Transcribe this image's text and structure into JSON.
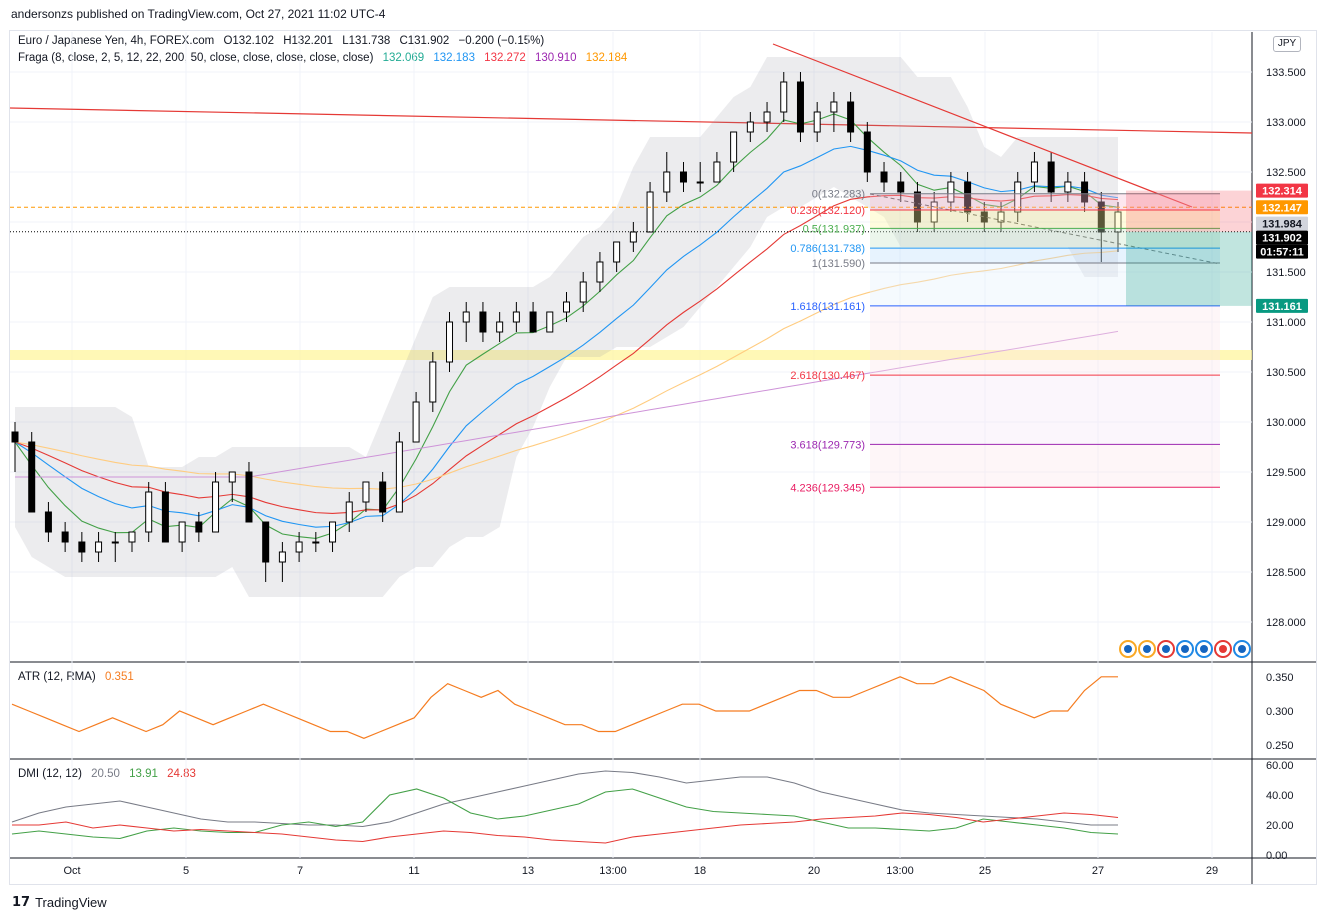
{
  "publisher": "andersonzs published on TradingView.com, Oct 27, 2021 11:02 UTC-4",
  "symbol_line": {
    "name": "Euro / Japanese Yen, 4h, FOREX.com",
    "open": "O132.102",
    "high": "H132.201",
    "low": "L131.738",
    "close": "C131.902",
    "change": "−0.200 (−0.15%)"
  },
  "indicator_line": {
    "name": "Fraga (8, close, 2, 5, 12, 22, 200, 50, close, close, close, close, close)",
    "values": [
      {
        "text": "132.069",
        "color": "#22ab94"
      },
      {
        "text": "132.183",
        "color": "#2196f3"
      },
      {
        "text": "132.272",
        "color": "#f23645"
      },
      {
        "text": "130.910",
        "color": "#9c27b0"
      },
      {
        "text": "132.184",
        "color": "#ff9800"
      }
    ]
  },
  "currency_button": "JPY",
  "atr": {
    "label": "ATR (12, RMA)",
    "value": "0.351",
    "color": "#f57c20"
  },
  "dmi": {
    "label": "DMI (12, 12)",
    "adx": "20.50",
    "di_plus": "13.91",
    "di_minus": "24.83",
    "colors": {
      "adx": "#787b86",
      "di_plus": "#43a047",
      "di_minus": "#e53935"
    }
  },
  "price_axis": [
    "133.500",
    "133.000",
    "132.500",
    "132.000",
    "131.500",
    "131.000",
    "130.500",
    "130.000",
    "129.500",
    "129.000",
    "128.500",
    "128.000"
  ],
  "price_badges": [
    {
      "text": "132.314",
      "bg": "#f23645",
      "color": "#ffffff"
    },
    {
      "text": "132.147",
      "bg": "#ff9800",
      "color": "#ffffff"
    },
    {
      "text": "131.984",
      "bg": "#d1d4dc",
      "color": "#131722"
    },
    {
      "text": "131.902",
      "bg": "#000000",
      "color": "#ffffff"
    },
    {
      "text": "01:57:11",
      "bg": "#000000",
      "color": "#ffffff"
    },
    {
      "text": "131.161",
      "bg": "#089981",
      "color": "#ffffff"
    }
  ],
  "atr_axis": [
    "0.350",
    "0.300",
    "0.250"
  ],
  "dmi_axis": [
    "60.00",
    "40.00",
    "20.00",
    "0.00"
  ],
  "time_axis": [
    "Oct",
    "5",
    "7",
    "11",
    "13",
    "13:00",
    "18",
    "20",
    "13:00",
    "25",
    "27",
    "29"
  ],
  "fib_levels": [
    {
      "text": "0(132.283)",
      "color": "#787b86"
    },
    {
      "text": "0.236(132.120)",
      "color": "#f23645"
    },
    {
      "text": "0.5(131.937)",
      "color": "#4caf50"
    },
    {
      "text": "0.786(131.738)",
      "color": "#2196f3"
    },
    {
      "text": "1(131.590)",
      "color": "#787b86"
    },
    {
      "text": "1.618(131.161)",
      "color": "#2962ff"
    },
    {
      "text": "2.618(130.467)",
      "color": "#f23645"
    },
    {
      "text": "3.618(129.773)",
      "color": "#9c27b0"
    },
    {
      "text": "4.236(129.345)",
      "color": "#e91e63"
    }
  ],
  "footer_brand": "TradingView",
  "chart_data": {
    "type": "candlestick",
    "title": "Euro / Japanese Yen, 4h, FOREX.com",
    "y_range": [
      127.6,
      133.9
    ],
    "candles": [
      [
        129.9,
        130.0,
        129.5,
        129.8
      ],
      [
        129.8,
        129.9,
        129.1,
        129.1
      ],
      [
        129.1,
        129.2,
        128.8,
        128.9
      ],
      [
        128.9,
        129.0,
        128.7,
        128.8
      ],
      [
        128.8,
        128.9,
        128.6,
        128.7
      ],
      [
        128.7,
        128.9,
        128.6,
        128.8
      ],
      [
        128.8,
        128.9,
        128.6,
        128.8
      ],
      [
        128.8,
        128.9,
        128.7,
        128.9
      ],
      [
        128.9,
        129.4,
        128.8,
        129.3
      ],
      [
        129.3,
        129.4,
        128.8,
        128.8
      ],
      [
        128.8,
        129.0,
        128.7,
        129.0
      ],
      [
        129.0,
        129.1,
        128.8,
        128.9
      ],
      [
        128.9,
        129.5,
        128.9,
        129.4
      ],
      [
        129.4,
        129.5,
        129.2,
        129.5
      ],
      [
        129.5,
        129.6,
        129.0,
        129.0
      ],
      [
        129.0,
        129.0,
        128.4,
        128.6
      ],
      [
        128.6,
        128.8,
        128.4,
        128.7
      ],
      [
        128.7,
        128.9,
        128.6,
        128.8
      ],
      [
        128.8,
        128.9,
        128.7,
        128.8
      ],
      [
        128.8,
        129.0,
        128.7,
        129.0
      ],
      [
        129.0,
        129.3,
        128.9,
        129.2
      ],
      [
        129.2,
        129.4,
        129.1,
        129.4
      ],
      [
        129.4,
        129.5,
        129.0,
        129.1
      ],
      [
        129.1,
        129.9,
        129.1,
        129.8
      ],
      [
        129.8,
        130.3,
        129.8,
        130.2
      ],
      [
        130.2,
        130.7,
        130.1,
        130.6
      ],
      [
        130.6,
        131.1,
        130.5,
        131.0
      ],
      [
        131.0,
        131.2,
        130.8,
        131.1
      ],
      [
        131.1,
        131.2,
        130.8,
        130.9
      ],
      [
        130.9,
        131.1,
        130.8,
        131.0
      ],
      [
        131.0,
        131.2,
        130.9,
        131.1
      ],
      [
        131.1,
        131.2,
        130.9,
        130.9
      ],
      [
        130.9,
        131.1,
        130.9,
        131.1
      ],
      [
        131.1,
        131.3,
        131.0,
        131.2
      ],
      [
        131.2,
        131.5,
        131.1,
        131.4
      ],
      [
        131.4,
        131.7,
        131.3,
        131.6
      ],
      [
        131.6,
        131.8,
        131.5,
        131.8
      ],
      [
        131.8,
        132.0,
        131.7,
        131.9
      ],
      [
        131.9,
        132.4,
        131.9,
        132.3
      ],
      [
        132.3,
        132.7,
        132.2,
        132.5
      ],
      [
        132.5,
        132.6,
        132.3,
        132.4
      ],
      [
        132.4,
        132.6,
        132.3,
        132.4
      ],
      [
        132.4,
        132.7,
        132.4,
        132.6
      ],
      [
        132.6,
        132.9,
        132.5,
        132.9
      ],
      [
        132.9,
        133.1,
        132.8,
        133.0
      ],
      [
        133.0,
        133.2,
        132.9,
        133.1
      ],
      [
        133.1,
        133.5,
        133.0,
        133.4
      ],
      [
        133.4,
        133.5,
        132.8,
        132.9
      ],
      [
        132.9,
        133.2,
        132.8,
        133.1
      ],
      [
        133.1,
        133.3,
        132.9,
        133.2
      ],
      [
        133.2,
        133.3,
        132.8,
        132.9
      ],
      [
        132.9,
        133.0,
        132.4,
        132.5
      ],
      [
        132.5,
        132.6,
        132.3,
        132.4
      ],
      [
        132.4,
        132.5,
        132.2,
        132.3
      ],
      [
        132.3,
        132.4,
        131.9,
        132.0
      ],
      [
        132.0,
        132.3,
        131.9,
        132.2
      ],
      [
        132.2,
        132.5,
        132.1,
        132.4
      ],
      [
        132.4,
        132.5,
        132.0,
        132.1
      ],
      [
        132.1,
        132.2,
        131.9,
        132.0
      ],
      [
        132.0,
        132.2,
        131.9,
        132.1
      ],
      [
        132.1,
        132.5,
        132.0,
        132.4
      ],
      [
        132.4,
        132.7,
        132.3,
        132.6
      ],
      [
        132.6,
        132.7,
        132.2,
        132.3
      ],
      [
        132.3,
        132.5,
        132.2,
        132.4
      ],
      [
        132.4,
        132.5,
        132.1,
        132.2
      ],
      [
        132.2,
        132.3,
        131.6,
        131.9
      ],
      [
        131.9,
        132.2,
        131.7,
        132.1
      ]
    ],
    "fib_retracement": {
      "start": 132.283,
      "end": 131.59
    },
    "atr_series": [
      0.31,
      0.3,
      0.29,
      0.28,
      0.27,
      0.28,
      0.29,
      0.28,
      0.27,
      0.28,
      0.3,
      0.29,
      0.28,
      0.29,
      0.3,
      0.31,
      0.3,
      0.29,
      0.28,
      0.27,
      0.27,
      0.26,
      0.27,
      0.28,
      0.29,
      0.32,
      0.34,
      0.33,
      0.32,
      0.33,
      0.31,
      0.3,
      0.29,
      0.28,
      0.28,
      0.27,
      0.27,
      0.28,
      0.29,
      0.3,
      0.31,
      0.31,
      0.3,
      0.3,
      0.3,
      0.31,
      0.32,
      0.33,
      0.33,
      0.32,
      0.32,
      0.33,
      0.34,
      0.35,
      0.34,
      0.34,
      0.35,
      0.34,
      0.33,
      0.31,
      0.3,
      0.29,
      0.3,
      0.3,
      0.33,
      0.35,
      0.35
    ],
    "dmi_series": {
      "adx": [
        22,
        28,
        32,
        34,
        36,
        32,
        28,
        24,
        22,
        22,
        21,
        20,
        20,
        19,
        22,
        28,
        34,
        38,
        42,
        46,
        50,
        54,
        56,
        55,
        52,
        48,
        50,
        52,
        52,
        48,
        42,
        38,
        34,
        30,
        28,
        27,
        26,
        25,
        24,
        22,
        20,
        20
      ],
      "di_plus": [
        14,
        16,
        14,
        12,
        11,
        16,
        18,
        16,
        15,
        15,
        20,
        22,
        19,
        22,
        40,
        44,
        38,
        28,
        24,
        26,
        30,
        34,
        42,
        44,
        38,
        32,
        29,
        28,
        27,
        26,
        22,
        18,
        18,
        17,
        16,
        18,
        24,
        22,
        20,
        18,
        15,
        14
      ],
      "di_minus": [
        20,
        20,
        22,
        18,
        20,
        18,
        16,
        17,
        16,
        15,
        14,
        12,
        10,
        9,
        12,
        14,
        16,
        15,
        13,
        12,
        10,
        9,
        8,
        12,
        14,
        16,
        18,
        20,
        21,
        22,
        24,
        25,
        26,
        28,
        27,
        25,
        22,
        24,
        26,
        28,
        27,
        25
      ]
    }
  }
}
